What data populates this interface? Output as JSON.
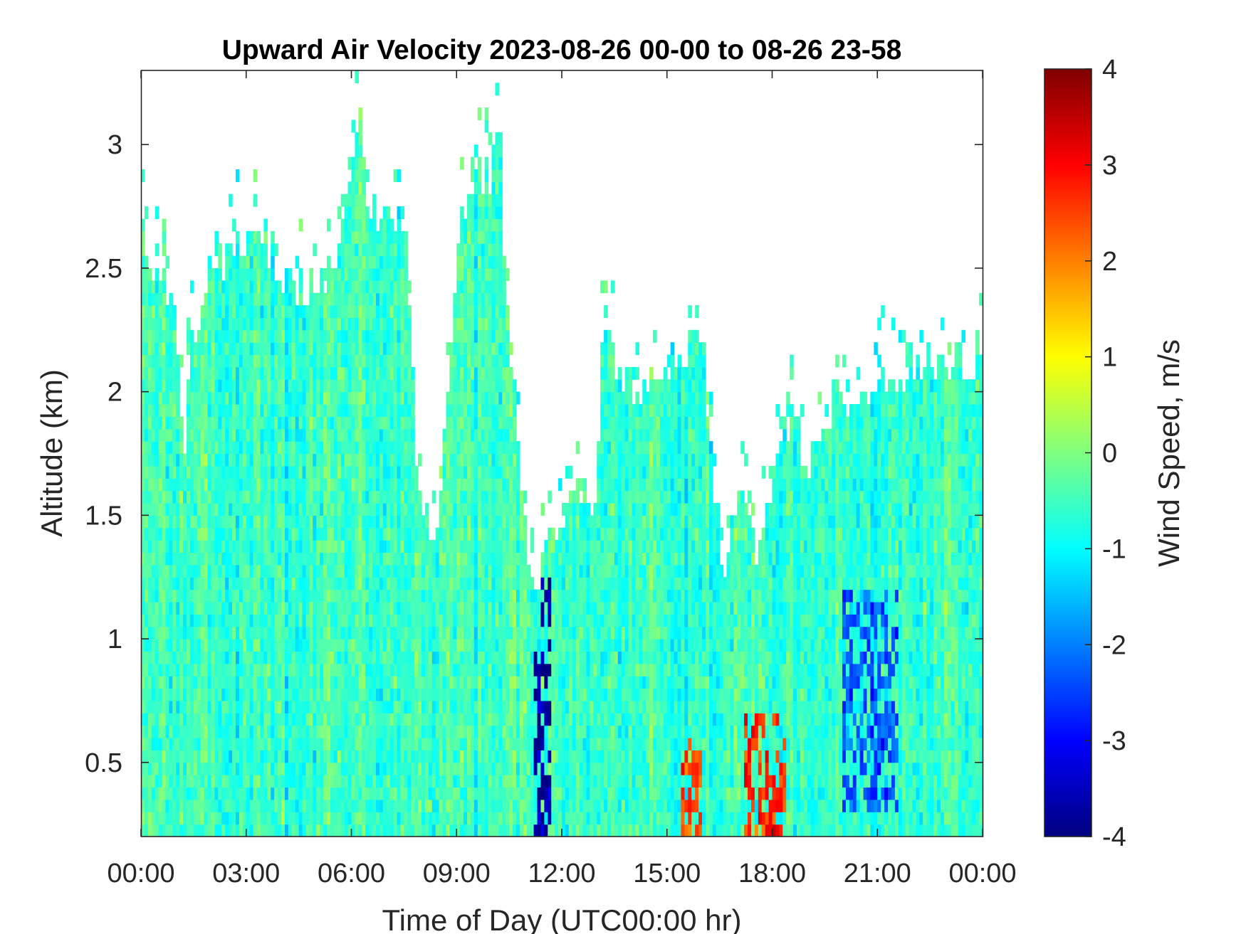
{
  "chart_data": {
    "type": "heatmap",
    "title": "Upward Air Velocity 2023-08-26 00-00 to 08-26 23-58",
    "xlabel": "Time of Day (UTC00:00 hr)",
    "ylabel": "Altitude (km)",
    "x_tick_labels": [
      "00:00",
      "03:00",
      "06:00",
      "09:00",
      "12:00",
      "15:00",
      "18:00",
      "21:00",
      "00:00"
    ],
    "x_tick_hours": [
      0,
      3,
      6,
      9,
      12,
      15,
      18,
      21,
      24
    ],
    "xlim_hours": [
      0,
      24
    ],
    "y_tick_labels": [
      "0.5",
      "1",
      "1.5",
      "2",
      "2.5",
      "3"
    ],
    "y_ticks": [
      0.5,
      1,
      1.5,
      2,
      2.5,
      3
    ],
    "ylim": [
      0.2,
      3.3
    ],
    "colorbar": {
      "label": "Wind Speed, m/s",
      "tick_labels": [
        "-4",
        "-3",
        "-2",
        "-1",
        "0",
        "1",
        "2",
        "3",
        "4"
      ],
      "ticks": [
        -4,
        -3,
        -2,
        -1,
        0,
        1,
        2,
        3,
        4
      ],
      "range": [
        -4,
        4
      ],
      "colormap": "jet"
    },
    "data_top_altitude_km": [
      [
        0,
        2.7
      ],
      [
        0.5,
        2.45
      ],
      [
        1,
        2.3
      ],
      [
        1.2,
        1.7
      ],
      [
        1.4,
        2.2
      ],
      [
        2,
        2.5
      ],
      [
        3,
        2.6
      ],
      [
        3.5,
        2.65
      ],
      [
        4,
        2.5
      ],
      [
        4.5,
        2.4
      ],
      [
        5,
        2.45
      ],
      [
        5.5,
        2.5
      ],
      [
        6,
        2.8
      ],
      [
        6.2,
        3.15
      ],
      [
        6.5,
        2.75
      ],
      [
        7,
        2.65
      ],
      [
        7.5,
        2.75
      ],
      [
        7.9,
        1.5
      ],
      [
        8.5,
        1.45
      ],
      [
        9,
        2.6
      ],
      [
        9.5,
        2.85
      ],
      [
        10,
        2.9
      ],
      [
        10.2,
        3.1
      ],
      [
        10.5,
        2.2
      ],
      [
        11,
        1.4
      ],
      [
        11.2,
        1.2
      ],
      [
        11.5,
        1.3
      ],
      [
        12,
        1.5
      ],
      [
        12.5,
        1.65
      ],
      [
        13,
        1.5
      ],
      [
        13.2,
        2.3
      ],
      [
        13.5,
        2.1
      ],
      [
        14,
        2.0
      ],
      [
        14.5,
        2.05
      ],
      [
        15,
        2.1
      ],
      [
        15.5,
        2.15
      ],
      [
        16,
        2.2
      ],
      [
        16.3,
        1.6
      ],
      [
        16.7,
        1.25
      ],
      [
        17,
        1.65
      ],
      [
        17.5,
        1.35
      ],
      [
        18,
        1.65
      ],
      [
        18.5,
        1.9
      ],
      [
        19,
        1.7
      ],
      [
        19.5,
        1.85
      ],
      [
        20,
        2.0
      ],
      [
        20.5,
        1.95
      ],
      [
        21,
        2.0
      ],
      [
        21.5,
        2.05
      ],
      [
        22,
        2.1
      ],
      [
        23,
        2.1
      ],
      [
        24,
        2.15
      ]
    ],
    "features": [
      {
        "hours": [
          11.2,
          11.7
        ],
        "altitude_km": [
          0.2,
          1.25
        ],
        "wind_speed": -3.7
      },
      {
        "hours": [
          15.4,
          16.0
        ],
        "altitude_km": [
          0.2,
          0.6
        ],
        "wind_speed": 2.5
      },
      {
        "hours": [
          17.2,
          18.4
        ],
        "altitude_km": [
          0.2,
          0.7
        ],
        "wind_speed": 2.7
      },
      {
        "hours": [
          20.0,
          21.6
        ],
        "altitude_km": [
          0.3,
          1.2
        ],
        "wind_speed": -2.3
      }
    ]
  }
}
